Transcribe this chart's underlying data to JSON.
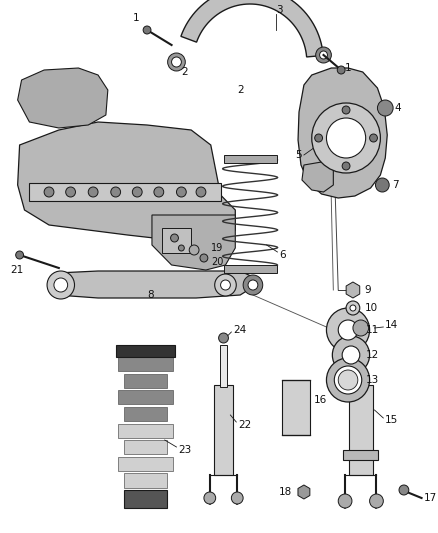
{
  "bg_color": "#ffffff",
  "fig_width": 4.38,
  "fig_height": 5.33,
  "dpi": 100,
  "lc": "#1a1a1a",
  "label_fs": 7.5,
  "label_color": "#111111"
}
